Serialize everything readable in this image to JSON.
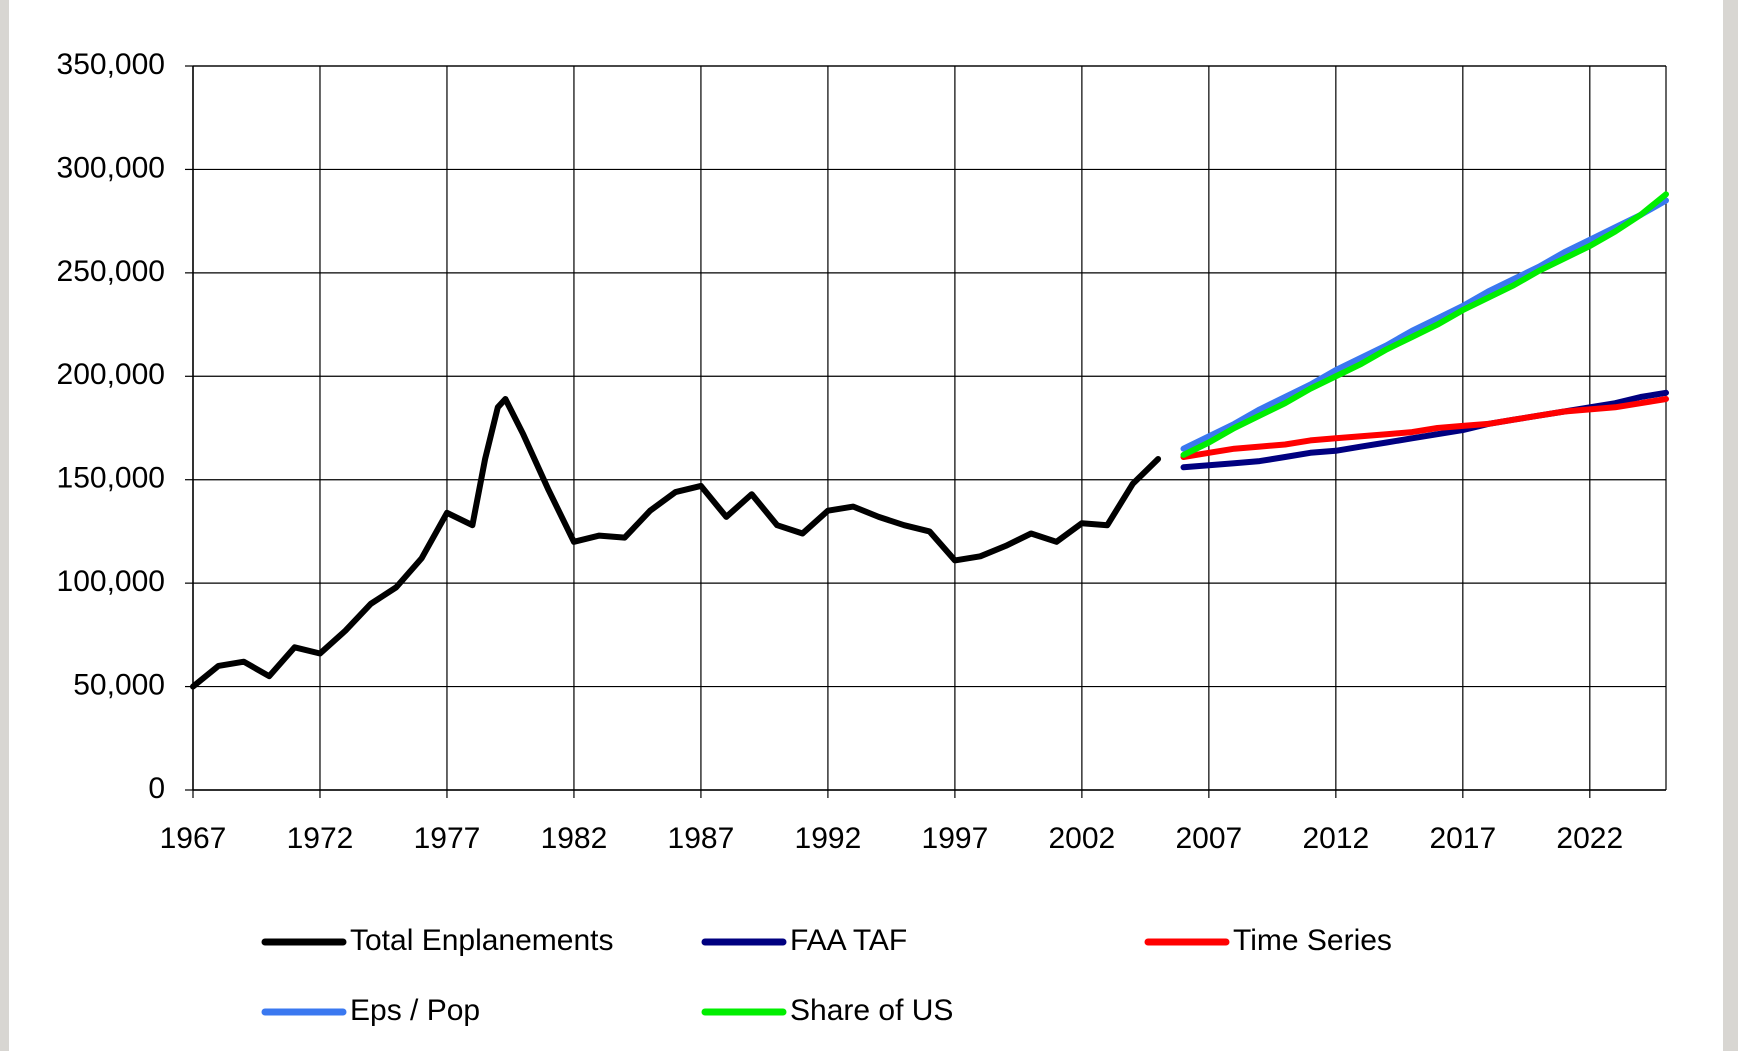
{
  "chart_data": {
    "type": "line",
    "xlim": [
      1967,
      2025
    ],
    "xticks": [
      1967,
      1972,
      1977,
      1982,
      1987,
      1992,
      1997,
      2002,
      2007,
      2012,
      2017,
      2022
    ],
    "ylim": [
      0,
      350000
    ],
    "yticks": [
      0,
      {
        "value": 50000,
        "label": "50,000"
      },
      {
        "value": 100000,
        "label": "100,000"
      },
      {
        "value": 150000,
        "label": "150,000"
      },
      {
        "value": 200000,
        "label": "200,000"
      },
      {
        "value": 250000,
        "label": "250,000"
      },
      {
        "value": 300000,
        "label": "300,000"
      },
      {
        "value": 350000,
        "label": "350,000"
      }
    ],
    "grid": true,
    "legend": "bottom",
    "series": [
      {
        "name": "Total Enplanements",
        "color": "#000000",
        "x": [
          1967,
          1968,
          1969,
          1970,
          1971,
          1972,
          1973,
          1974,
          1975,
          1976,
          1977,
          1978,
          1978.5,
          1979,
          1979.3,
          1980,
          1981,
          1982,
          1983,
          1984,
          1985,
          1986,
          1987,
          1988,
          1989,
          1990,
          1991,
          1992,
          1993,
          1994,
          1995,
          1996,
          1997,
          1998,
          1999,
          2000,
          2001,
          2002,
          2003,
          2004,
          2005
        ],
        "values": [
          50000,
          60000,
          62000,
          55000,
          69000,
          66000,
          77000,
          90000,
          98000,
          112000,
          134000,
          128000,
          160000,
          185000,
          189000,
          172000,
          145000,
          120000,
          123000,
          122000,
          135000,
          144000,
          147000,
          132000,
          143000,
          128000,
          124000,
          135000,
          137000,
          132000,
          128000,
          125000,
          111000,
          113000,
          118000,
          124000,
          120000,
          129000,
          128000,
          148000,
          160000
        ]
      },
      {
        "name": "FAA TAF",
        "color": "#000080",
        "x": [
          2006,
          2007,
          2008,
          2009,
          2010,
          2011,
          2012,
          2013,
          2014,
          2015,
          2016,
          2017,
          2018,
          2019,
          2020,
          2021,
          2022,
          2023,
          2024,
          2025
        ],
        "values": [
          156000,
          157000,
          158000,
          159000,
          161000,
          163000,
          164000,
          166000,
          168000,
          170000,
          172000,
          174000,
          177000,
          179000,
          181000,
          183000,
          185000,
          187000,
          190000,
          192000
        ]
      },
      {
        "name": "Time Series",
        "color": "#ff0000",
        "x": [
          2006,
          2007,
          2008,
          2009,
          2010,
          2011,
          2012,
          2013,
          2014,
          2015,
          2016,
          2017,
          2018,
          2019,
          2020,
          2021,
          2022,
          2023,
          2024,
          2025
        ],
        "values": [
          161000,
          163000,
          165000,
          166000,
          167000,
          169000,
          170000,
          171000,
          172000,
          173000,
          175000,
          176000,
          177000,
          179000,
          181000,
          183000,
          184000,
          185000,
          187000,
          189000
        ]
      },
      {
        "name": "Eps / Pop",
        "color": "#3a78f0",
        "x": [
          2006,
          2007,
          2008,
          2009,
          2010,
          2011,
          2012,
          2013,
          2014,
          2015,
          2016,
          2017,
          2018,
          2019,
          2020,
          2021,
          2022,
          2023,
          2024,
          2025
        ],
        "values": [
          165000,
          171000,
          177000,
          184000,
          190000,
          196000,
          203000,
          209000,
          215000,
          222000,
          228000,
          234000,
          241000,
          247000,
          253000,
          260000,
          266000,
          272000,
          278000,
          285000
        ]
      },
      {
        "name": "Share of US",
        "color": "#00ee00",
        "x": [
          2006,
          2007,
          2008,
          2009,
          2010,
          2011,
          2012,
          2013,
          2014,
          2015,
          2016,
          2017,
          2018,
          2019,
          2020,
          2021,
          2022,
          2023,
          2024,
          2025
        ],
        "values": [
          162000,
          168000,
          175000,
          181000,
          187000,
          194000,
          200000,
          206000,
          213000,
          219000,
          225000,
          232000,
          238000,
          244000,
          251000,
          257000,
          263000,
          270000,
          278000,
          288000
        ]
      }
    ]
  }
}
